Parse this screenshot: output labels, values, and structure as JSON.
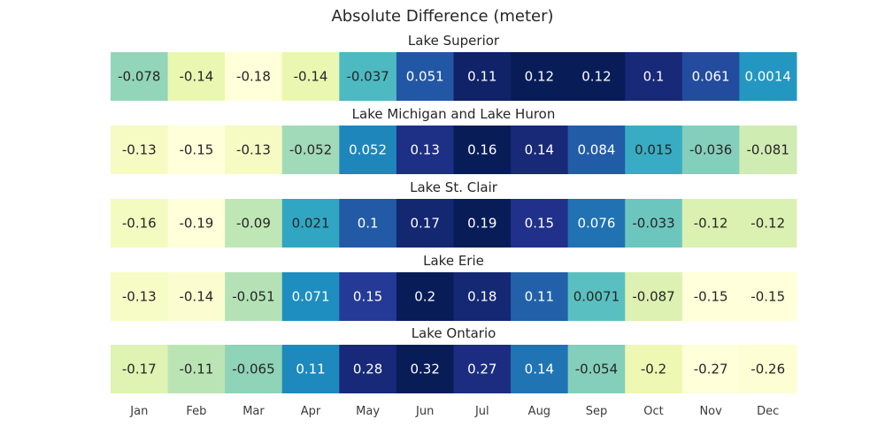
{
  "chart_data": {
    "type": "heatmap",
    "title": "Absolute Difference (meter)",
    "colormap": "YlGnBu",
    "columns": [
      "Jan",
      "Feb",
      "Mar",
      "Apr",
      "May",
      "Jun",
      "Jul",
      "Aug",
      "Sep",
      "Oct",
      "Nov",
      "Dec"
    ],
    "panels": [
      {
        "name": "Lake Superior",
        "labels": [
          "-0.078",
          "-0.14",
          "-0.18",
          "-0.14",
          "-0.037",
          "0.051",
          "0.11",
          "0.12",
          "0.12",
          "0.1",
          "0.061",
          "0.0014"
        ],
        "values": [
          -0.078,
          -0.14,
          -0.18,
          -0.14,
          -0.037,
          0.051,
          0.11,
          0.12,
          0.12,
          0.1,
          0.061,
          0.0014
        ]
      },
      {
        "name": "Lake Michigan and Lake Huron",
        "labels": [
          "-0.13",
          "-0.15",
          "-0.13",
          "-0.052",
          "0.052",
          "0.13",
          "0.16",
          "0.14",
          "0.084",
          "0.015",
          "-0.036",
          "-0.081"
        ],
        "values": [
          -0.13,
          -0.15,
          -0.13,
          -0.052,
          0.052,
          0.13,
          0.16,
          0.14,
          0.084,
          0.015,
          -0.036,
          -0.081
        ]
      },
      {
        "name": "Lake St. Clair",
        "labels": [
          "-0.16",
          "-0.19",
          "-0.09",
          "0.021",
          "0.1",
          "0.17",
          "0.19",
          "0.15",
          "0.076",
          "-0.033",
          "-0.12",
          "-0.12"
        ],
        "values": [
          -0.16,
          -0.19,
          -0.09,
          0.021,
          0.1,
          0.17,
          0.19,
          0.15,
          0.076,
          -0.033,
          -0.12,
          -0.12
        ]
      },
      {
        "name": "Lake Erie",
        "labels": [
          "-0.13",
          "-0.14",
          "-0.051",
          "0.071",
          "0.15",
          "0.2",
          "0.18",
          "0.11",
          "0.0071",
          "-0.087",
          "-0.15",
          "-0.15"
        ],
        "values": [
          -0.13,
          -0.14,
          -0.051,
          0.071,
          0.15,
          0.2,
          0.18,
          0.11,
          0.0071,
          -0.087,
          -0.15,
          -0.15
        ]
      },
      {
        "name": "Lake Ontario",
        "labels": [
          "-0.17",
          "-0.11",
          "-0.065",
          "0.11",
          "0.28",
          "0.32",
          "0.27",
          "0.14",
          "-0.054",
          "-0.2",
          "-0.27",
          "-0.26"
        ],
        "values": [
          -0.17,
          -0.11,
          -0.065,
          0.11,
          0.28,
          0.32,
          0.27,
          0.14,
          -0.054,
          -0.2,
          -0.27,
          -0.26
        ]
      }
    ]
  }
}
